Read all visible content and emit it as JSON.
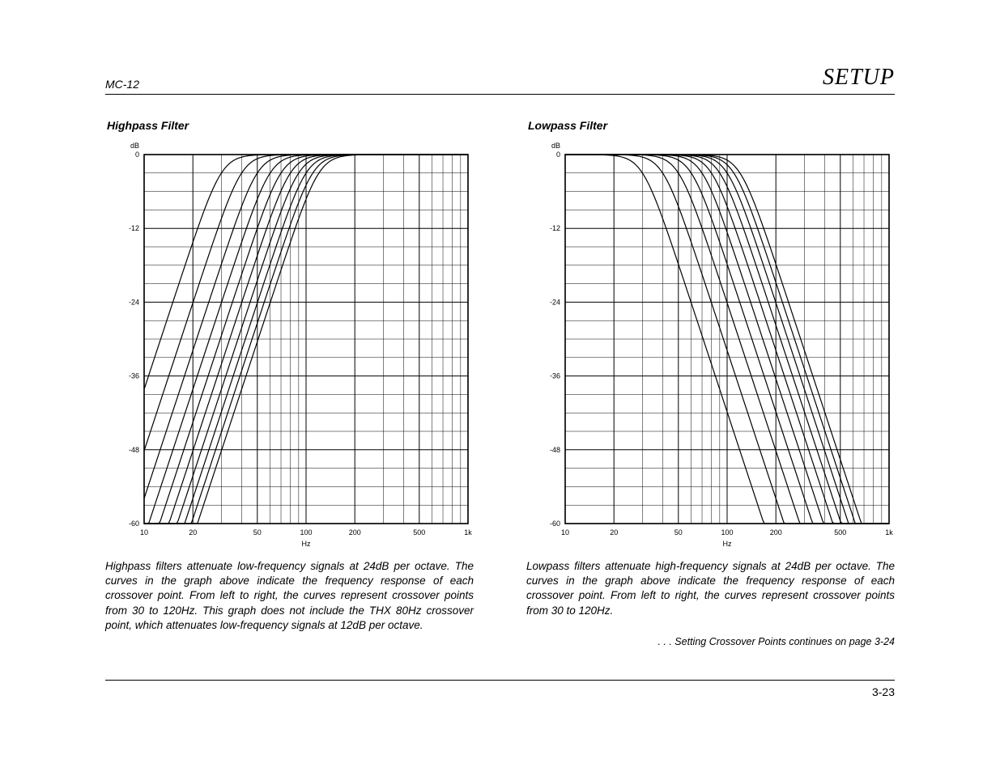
{
  "header": {
    "model": "MC-12",
    "section": "SETUP"
  },
  "highpass": {
    "title": "Highpass Filter",
    "caption": "Highpass filters attenuate low-frequency signals at 24dB per octave. The curves in the graph above indicate the frequency response of each crossover point. From left to right, the curves represent crossover points from 30 to 120Hz. This graph does not include the THX 80Hz crossover point, which attenuates low-frequency signals at 12dB per octave.",
    "chart": {
      "type": "line",
      "x_scale": "log",
      "xlim": [
        10,
        1000
      ],
      "ylim": [
        -60,
        0
      ],
      "ytick_step": 12,
      "x_ticks": [
        10,
        20,
        50,
        100,
        200,
        500,
        1000
      ],
      "x_tick_labels": [
        "10",
        "20",
        "50",
        "100",
        "200",
        "500",
        "1k"
      ],
      "x_minor_ticks": [
        10,
        20,
        30,
        40,
        50,
        60,
        70,
        80,
        90,
        100,
        200,
        300,
        400,
        500,
        600,
        700,
        800,
        900,
        1000
      ],
      "x_axis_label": "Hz",
      "y_axis_label": "dB",
      "y_grid_minor_step": 3,
      "background_color": "#ffffff",
      "grid_color": "#000000",
      "line_color": "#000000",
      "line_width": 1.2,
      "label_fontsize": 9,
      "crossover_hz": [
        30,
        40,
        50,
        60,
        70,
        80,
        90,
        100,
        110,
        120
      ],
      "slope_db_per_octave": 24
    }
  },
  "lowpass": {
    "title": "Lowpass Filter",
    "caption": "Lowpass filters attenuate high-frequency signals at 24dB per octave. The curves in the graph above indicate the frequency response of each crossover point. From left to right, the curves represent crossover points from 30 to 120Hz.",
    "chart": {
      "type": "line",
      "x_scale": "log",
      "xlim": [
        10,
        1000
      ],
      "ylim": [
        -60,
        0
      ],
      "ytick_step": 12,
      "x_ticks": [
        10,
        20,
        50,
        100,
        200,
        500,
        1000
      ],
      "x_tick_labels": [
        "10",
        "20",
        "50",
        "100",
        "200",
        "500",
        "1k"
      ],
      "x_minor_ticks": [
        10,
        20,
        30,
        40,
        50,
        60,
        70,
        80,
        90,
        100,
        200,
        300,
        400,
        500,
        600,
        700,
        800,
        900,
        1000
      ],
      "x_axis_label": "Hz",
      "y_axis_label": "dB",
      "y_grid_minor_step": 3,
      "background_color": "#ffffff",
      "grid_color": "#000000",
      "line_color": "#000000",
      "line_width": 1.2,
      "label_fontsize": 9,
      "crossover_hz": [
        30,
        40,
        50,
        60,
        70,
        80,
        90,
        100,
        110,
        120
      ],
      "slope_db_per_octave": 24
    }
  },
  "continues": ". . . Setting Crossover Points continues on page 3-24",
  "footer": {
    "page": "3-23"
  }
}
